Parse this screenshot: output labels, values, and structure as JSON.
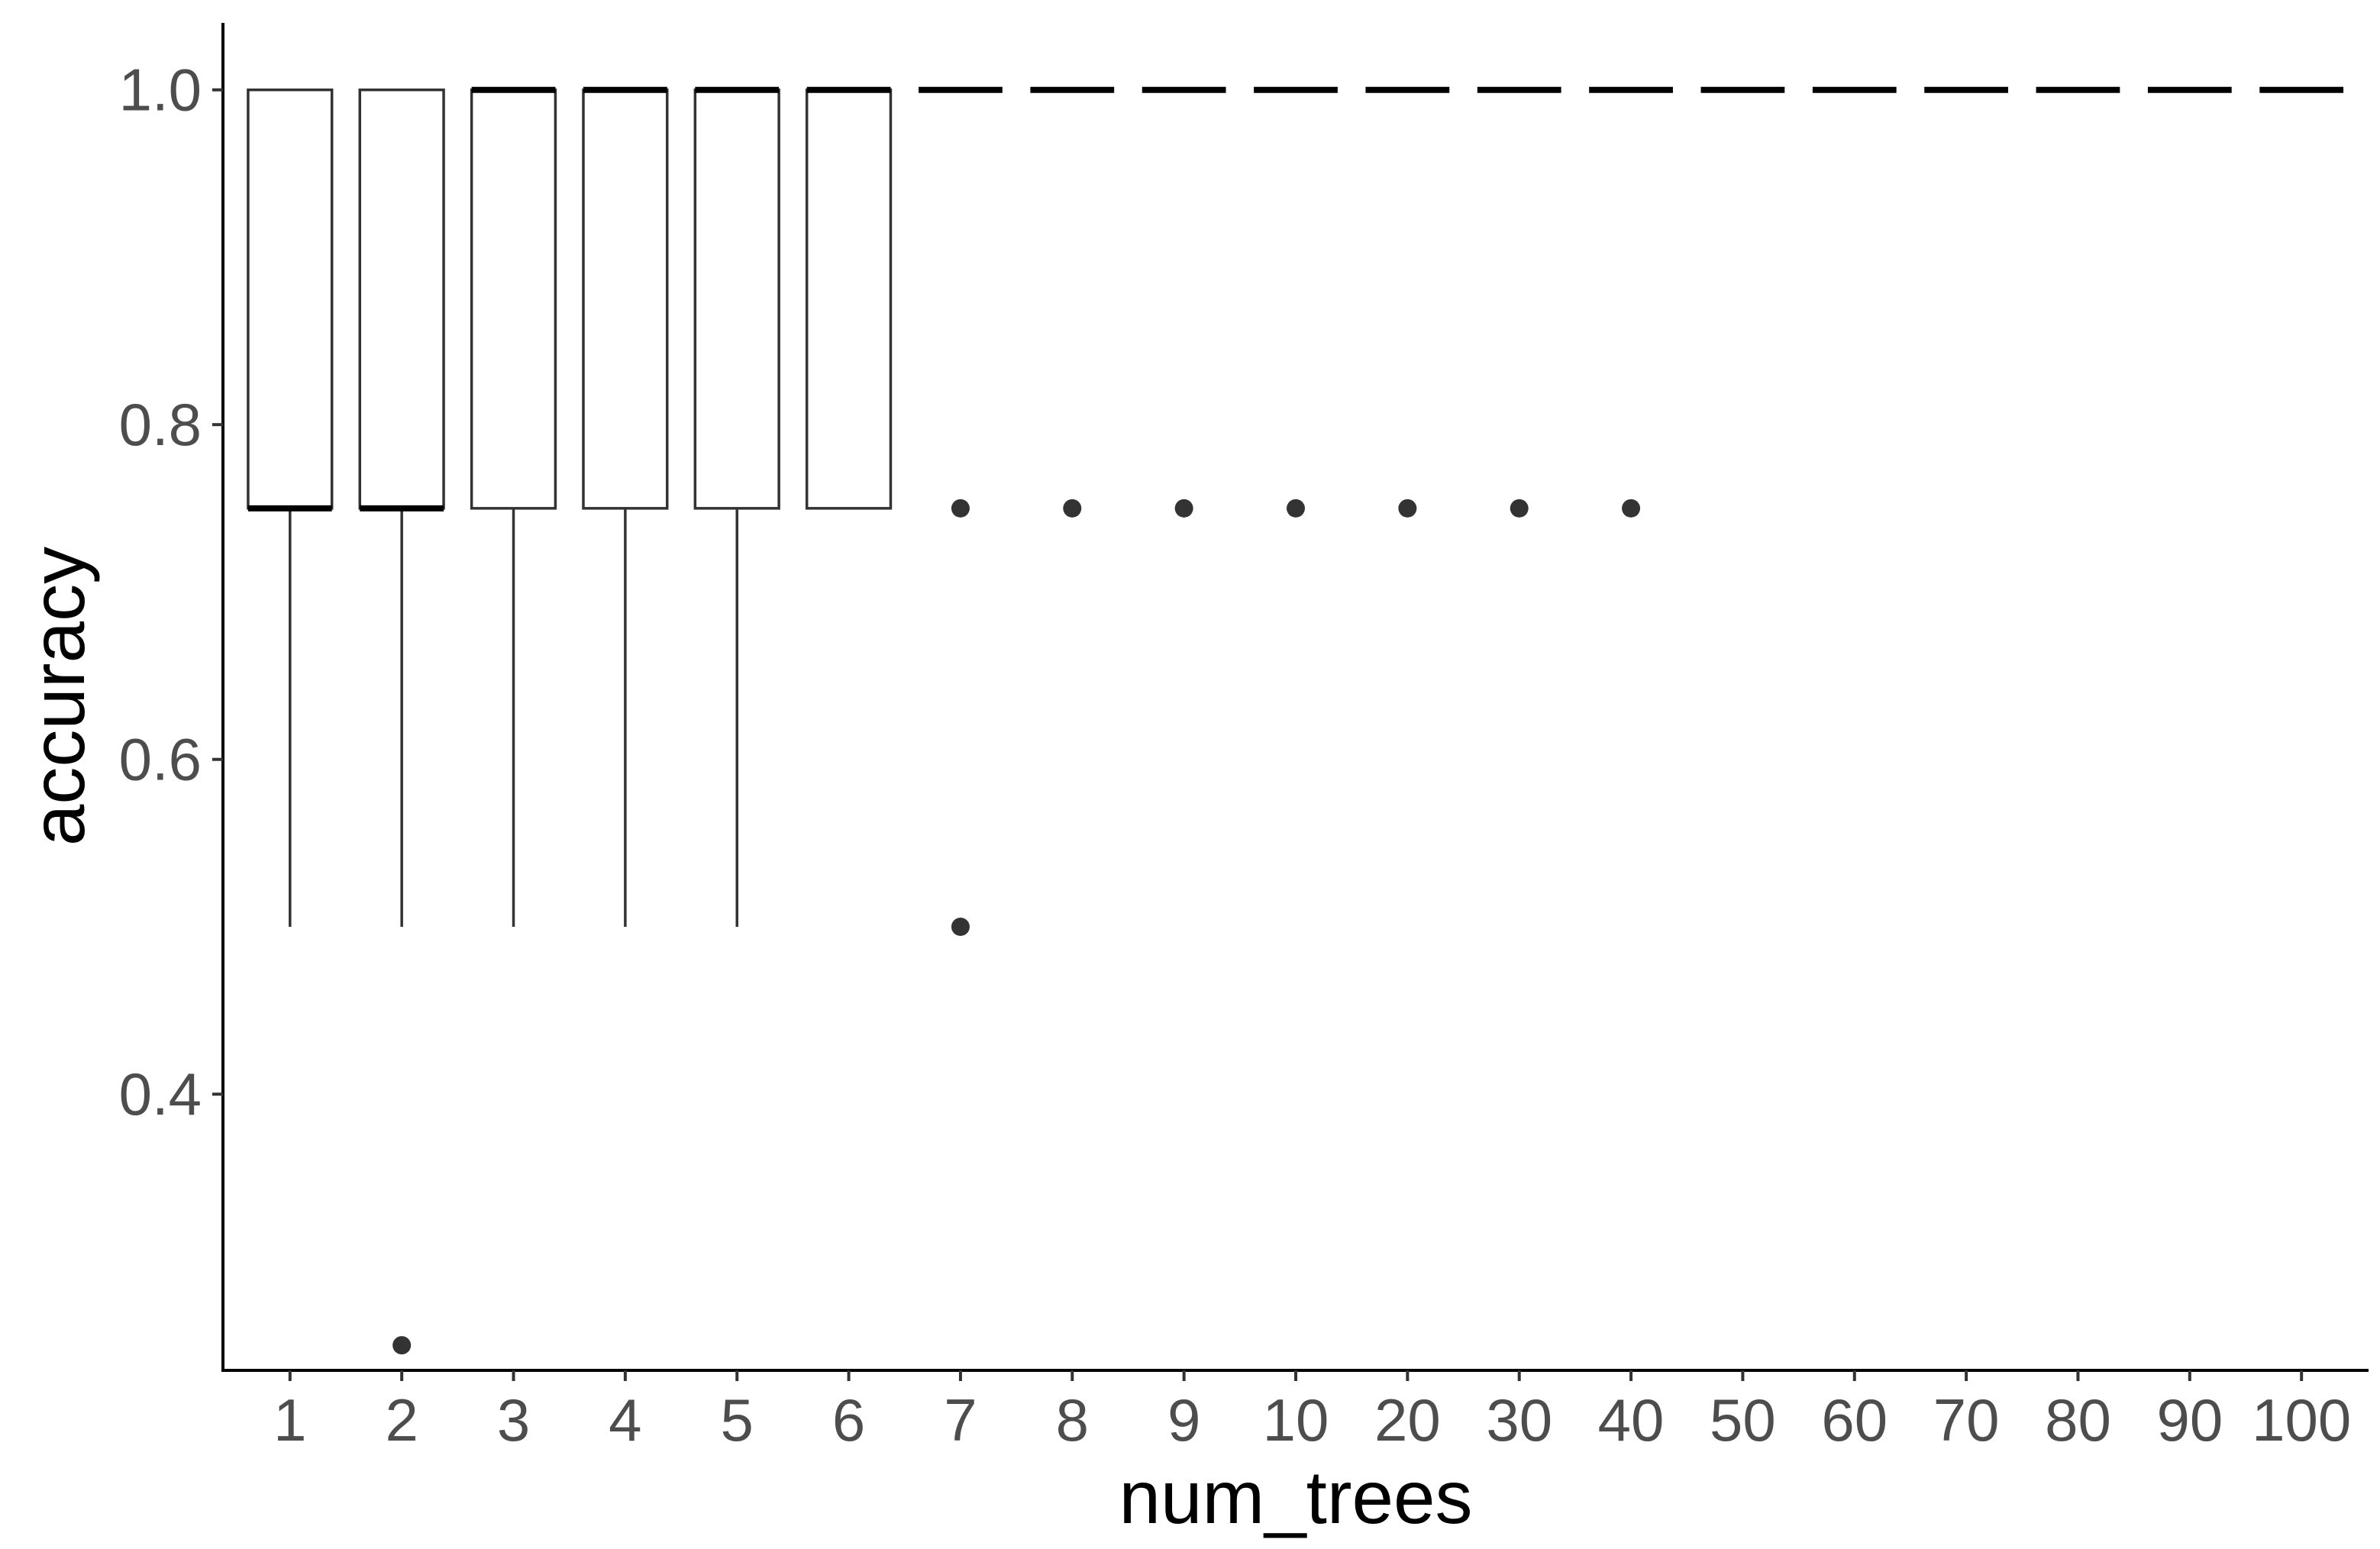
{
  "chart_data": {
    "type": "boxplot",
    "title": "",
    "xlabel": "num_trees",
    "ylabel": "accuracy",
    "categories": [
      "1",
      "2",
      "3",
      "4",
      "5",
      "6",
      "7",
      "8",
      "9",
      "10",
      "20",
      "30",
      "40",
      "50",
      "60",
      "70",
      "80",
      "90",
      "100"
    ],
    "ylim": [
      0.235,
      1.04
    ],
    "y_ticks": [
      0.4,
      0.6,
      0.8,
      1.0
    ],
    "y_tick_labels": [
      "0.4",
      "0.6",
      "0.8",
      "1.0"
    ],
    "grid": false,
    "legend": "none",
    "boxes": [
      {
        "category": "1",
        "min": 0.5,
        "q1": 0.75,
        "median": 0.75,
        "q3": 1.0,
        "max": 1.0,
        "outliers": []
      },
      {
        "category": "2",
        "min": 0.5,
        "q1": 0.75,
        "median": 0.75,
        "q3": 1.0,
        "max": 1.0,
        "outliers": [
          0.25
        ]
      },
      {
        "category": "3",
        "min": 0.5,
        "q1": 0.75,
        "median": 1.0,
        "q3": 1.0,
        "max": 1.0,
        "outliers": []
      },
      {
        "category": "4",
        "min": 0.5,
        "q1": 0.75,
        "median": 1.0,
        "q3": 1.0,
        "max": 1.0,
        "outliers": []
      },
      {
        "category": "5",
        "min": 0.5,
        "q1": 0.75,
        "median": 1.0,
        "q3": 1.0,
        "max": 1.0,
        "outliers": []
      },
      {
        "category": "6",
        "min": 0.75,
        "q1": 0.75,
        "median": 1.0,
        "q3": 1.0,
        "max": 1.0,
        "outliers": []
      },
      {
        "category": "7",
        "min": 1.0,
        "q1": 1.0,
        "median": 1.0,
        "q3": 1.0,
        "max": 1.0,
        "outliers": [
          0.75,
          0.5
        ]
      },
      {
        "category": "8",
        "min": 1.0,
        "q1": 1.0,
        "median": 1.0,
        "q3": 1.0,
        "max": 1.0,
        "outliers": [
          0.75
        ]
      },
      {
        "category": "9",
        "min": 1.0,
        "q1": 1.0,
        "median": 1.0,
        "q3": 1.0,
        "max": 1.0,
        "outliers": [
          0.75
        ]
      },
      {
        "category": "10",
        "min": 1.0,
        "q1": 1.0,
        "median": 1.0,
        "q3": 1.0,
        "max": 1.0,
        "outliers": [
          0.75
        ]
      },
      {
        "category": "20",
        "min": 1.0,
        "q1": 1.0,
        "median": 1.0,
        "q3": 1.0,
        "max": 1.0,
        "outliers": [
          0.75
        ]
      },
      {
        "category": "30",
        "min": 1.0,
        "q1": 1.0,
        "median": 1.0,
        "q3": 1.0,
        "max": 1.0,
        "outliers": [
          0.75
        ]
      },
      {
        "category": "40",
        "min": 1.0,
        "q1": 1.0,
        "median": 1.0,
        "q3": 1.0,
        "max": 1.0,
        "outliers": [
          0.75
        ]
      },
      {
        "category": "50",
        "min": 1.0,
        "q1": 1.0,
        "median": 1.0,
        "q3": 1.0,
        "max": 1.0,
        "outliers": []
      },
      {
        "category": "60",
        "min": 1.0,
        "q1": 1.0,
        "median": 1.0,
        "q3": 1.0,
        "max": 1.0,
        "outliers": []
      },
      {
        "category": "70",
        "min": 1.0,
        "q1": 1.0,
        "median": 1.0,
        "q3": 1.0,
        "max": 1.0,
        "outliers": []
      },
      {
        "category": "80",
        "min": 1.0,
        "q1": 1.0,
        "median": 1.0,
        "q3": 1.0,
        "max": 1.0,
        "outliers": []
      },
      {
        "category": "90",
        "min": 1.0,
        "q1": 1.0,
        "median": 1.0,
        "q3": 1.0,
        "max": 1.0,
        "outliers": []
      },
      {
        "category": "100",
        "min": 1.0,
        "q1": 1.0,
        "median": 1.0,
        "q3": 1.0,
        "max": 1.0,
        "outliers": []
      }
    ],
    "colors": {
      "box_stroke": "#333333",
      "outlier": "#333333",
      "axis": "#000000",
      "tick_label": "#4d4d4d",
      "background": "#ffffff"
    }
  }
}
